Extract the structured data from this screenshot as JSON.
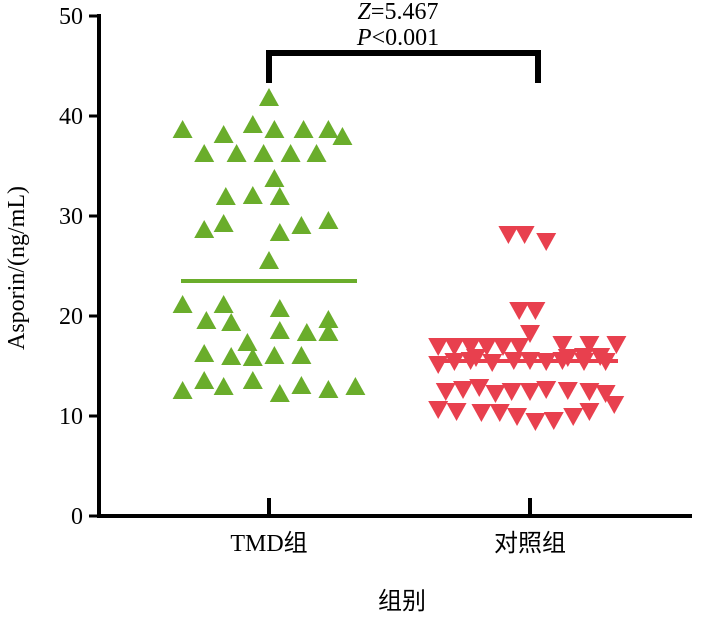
{
  "chart_data": {
    "type": "scatter",
    "title": "",
    "xlabel": "组别",
    "ylabel": "Asporin/(ng/mL)",
    "ylim": [
      0,
      50
    ],
    "yticks": [
      0,
      10,
      20,
      30,
      40,
      50
    ],
    "categories": [
      "TMD组",
      "对照组"
    ],
    "series": [
      {
        "name": "TMD组",
        "category": "TMD组",
        "marker": "triangle-up",
        "color": "#6aad2b",
        "median": 23.5,
        "points": [
          [
            -0.8,
            38.6
          ],
          [
            -0.6,
            36.2
          ],
          [
            -0.42,
            38.1
          ],
          [
            -0.3,
            36.2
          ],
          [
            -0.15,
            39.1
          ],
          [
            -0.05,
            36.2
          ],
          [
            0.05,
            38.6
          ],
          [
            0.2,
            36.2
          ],
          [
            0.32,
            38.6
          ],
          [
            0.44,
            36.2
          ],
          [
            0.55,
            38.6
          ],
          [
            0.68,
            37.9
          ],
          [
            0.0,
            41.8
          ],
          [
            -0.4,
            31.9
          ],
          [
            -0.15,
            32.0
          ],
          [
            0.05,
            33.7
          ],
          [
            0.1,
            31.9
          ],
          [
            -0.6,
            28.6
          ],
          [
            -0.42,
            29.2
          ],
          [
            0.1,
            28.3
          ],
          [
            0.3,
            29.0
          ],
          [
            0.55,
            29.5
          ],
          [
            0.0,
            25.5
          ],
          [
            -0.8,
            21.1
          ],
          [
            -0.42,
            21.1
          ],
          [
            0.1,
            20.7
          ],
          [
            0.55,
            19.6
          ],
          [
            -0.58,
            19.5
          ],
          [
            -0.35,
            19.3
          ],
          [
            -0.2,
            17.3
          ],
          [
            0.1,
            18.5
          ],
          [
            0.35,
            18.3
          ],
          [
            0.55,
            18.3
          ],
          [
            -0.6,
            16.2
          ],
          [
            -0.35,
            15.9
          ],
          [
            -0.15,
            15.8
          ],
          [
            0.05,
            16.0
          ],
          [
            0.3,
            16.0
          ],
          [
            -0.8,
            12.5
          ],
          [
            -0.6,
            13.5
          ],
          [
            -0.42,
            12.9
          ],
          [
            -0.15,
            13.5
          ],
          [
            0.1,
            12.2
          ],
          [
            0.3,
            13.0
          ],
          [
            0.55,
            12.6
          ],
          [
            0.8,
            12.9
          ]
        ]
      },
      {
        "name": "对照组",
        "category": "对照组",
        "marker": "triangle-down",
        "color": "#e8404e",
        "median": 15.5,
        "points": [
          [
            -0.2,
            28.2
          ],
          [
            -0.05,
            28.2
          ],
          [
            0.15,
            27.5
          ],
          [
            -0.1,
            20.6
          ],
          [
            0.05,
            20.6
          ],
          [
            0.0,
            18.3
          ],
          [
            -0.85,
            17.0
          ],
          [
            -0.7,
            17.0
          ],
          [
            -0.55,
            17.0
          ],
          [
            -0.4,
            17.0
          ],
          [
            -0.25,
            17.0
          ],
          [
            -0.1,
            17.0
          ],
          [
            0.3,
            17.2
          ],
          [
            0.55,
            17.2
          ],
          [
            0.8,
            17.2
          ],
          [
            -0.85,
            15.2
          ],
          [
            -0.7,
            15.5
          ],
          [
            -0.55,
            15.6
          ],
          [
            -0.35,
            15.4
          ],
          [
            -0.15,
            15.6
          ],
          [
            0.0,
            15.6
          ],
          [
            0.15,
            15.5
          ],
          [
            0.3,
            15.6
          ],
          [
            0.5,
            15.5
          ],
          [
            0.7,
            15.5
          ],
          [
            0.35,
            15.9
          ],
          [
            0.5,
            16.0
          ],
          [
            0.65,
            16.0
          ],
          [
            -0.5,
            15.9
          ],
          [
            -0.78,
            12.5
          ],
          [
            -0.62,
            12.7
          ],
          [
            -0.47,
            12.9
          ],
          [
            -0.32,
            12.3
          ],
          [
            -0.17,
            12.5
          ],
          [
            0.0,
            12.5
          ],
          [
            0.15,
            12.7
          ],
          [
            0.35,
            12.6
          ],
          [
            0.55,
            12.5
          ],
          [
            0.7,
            12.3
          ],
          [
            -0.85,
            10.7
          ],
          [
            -0.68,
            10.5
          ],
          [
            -0.45,
            10.4
          ],
          [
            -0.28,
            10.4
          ],
          [
            -0.12,
            10.0
          ],
          [
            0.05,
            9.5
          ],
          [
            0.22,
            9.6
          ],
          [
            0.4,
            10.0
          ],
          [
            0.55,
            10.5
          ],
          [
            0.78,
            11.2
          ]
        ]
      }
    ],
    "annotation": {
      "z_label": "Z",
      "z_value": "=5.467",
      "p_label": "P",
      "p_value": "<0.001"
    },
    "grid": false,
    "legend": "none"
  }
}
